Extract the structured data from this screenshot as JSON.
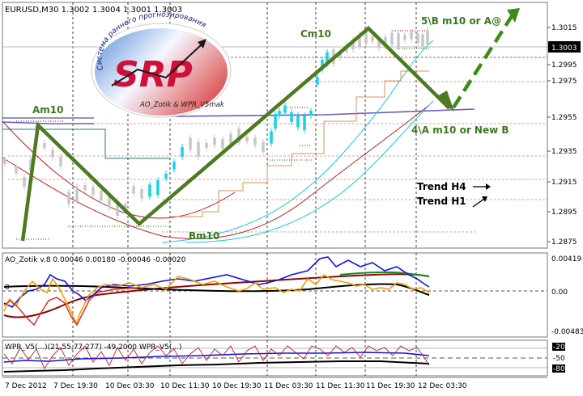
{
  "main_chart": {
    "header": "EURUSD,M30  1.3002 1.3004 1.3001 1.3003",
    "price_ticks": [
      "1.3015",
      "1.2995",
      "1.2975",
      "1.2955",
      "1.2935",
      "1.2915",
      "1.2895",
      "1.2875"
    ],
    "current_price": "1.3003",
    "annotations": {
      "am10": "Am10",
      "bm10": "Bm10",
      "cm10": "Cm10",
      "projection_top": "5\\B m10 or  A@",
      "projection_bottom": "4\\A m10 or New B",
      "trend_h4": "Trend H4",
      "trend_h1": "Trend H1"
    },
    "logo": {
      "letters": "SRP",
      "arc_text": "Система раннего прогнозирования",
      "authors": "AO_Zotik & WPR_V5mak"
    }
  },
  "ao_panel": {
    "header": "AO_Zotik v.8 0.00046 0.00180 -0.00046 -0.00020",
    "ticks": [
      "0.00419",
      "0.00",
      "-0.00483"
    ],
    "zero_label": "0"
  },
  "wpr_panel": {
    "header": "WPR_V5(...)(21,55,77,277) -49.2000  WPR_V5(...)",
    "ticks": [
      "-20",
      "-50",
      "-80"
    ]
  },
  "time_axis": [
    "7 Dec 2012",
    "7 Dec 19:30",
    "10 Dec 03:30",
    "10 Dec 11:30",
    "10 Dec 19:30",
    "11 Dec 03:30",
    "11 Dec 11:30",
    "11 Dec 19:30",
    "12 Dec 03:30"
  ],
  "colors": {
    "wave": "#4e7a21",
    "projection": "#3f8a1a",
    "candle_light": "#c8c8c8",
    "candle_cyan": "#19d3e6",
    "label_green": "#3b7a1e",
    "logo_red": "#d0103a",
    "ao_blue": "#1010e8",
    "ao_orange": "#f0a000",
    "ao_red": "#c01010",
    "ao_green": "#1a8a1a"
  }
}
